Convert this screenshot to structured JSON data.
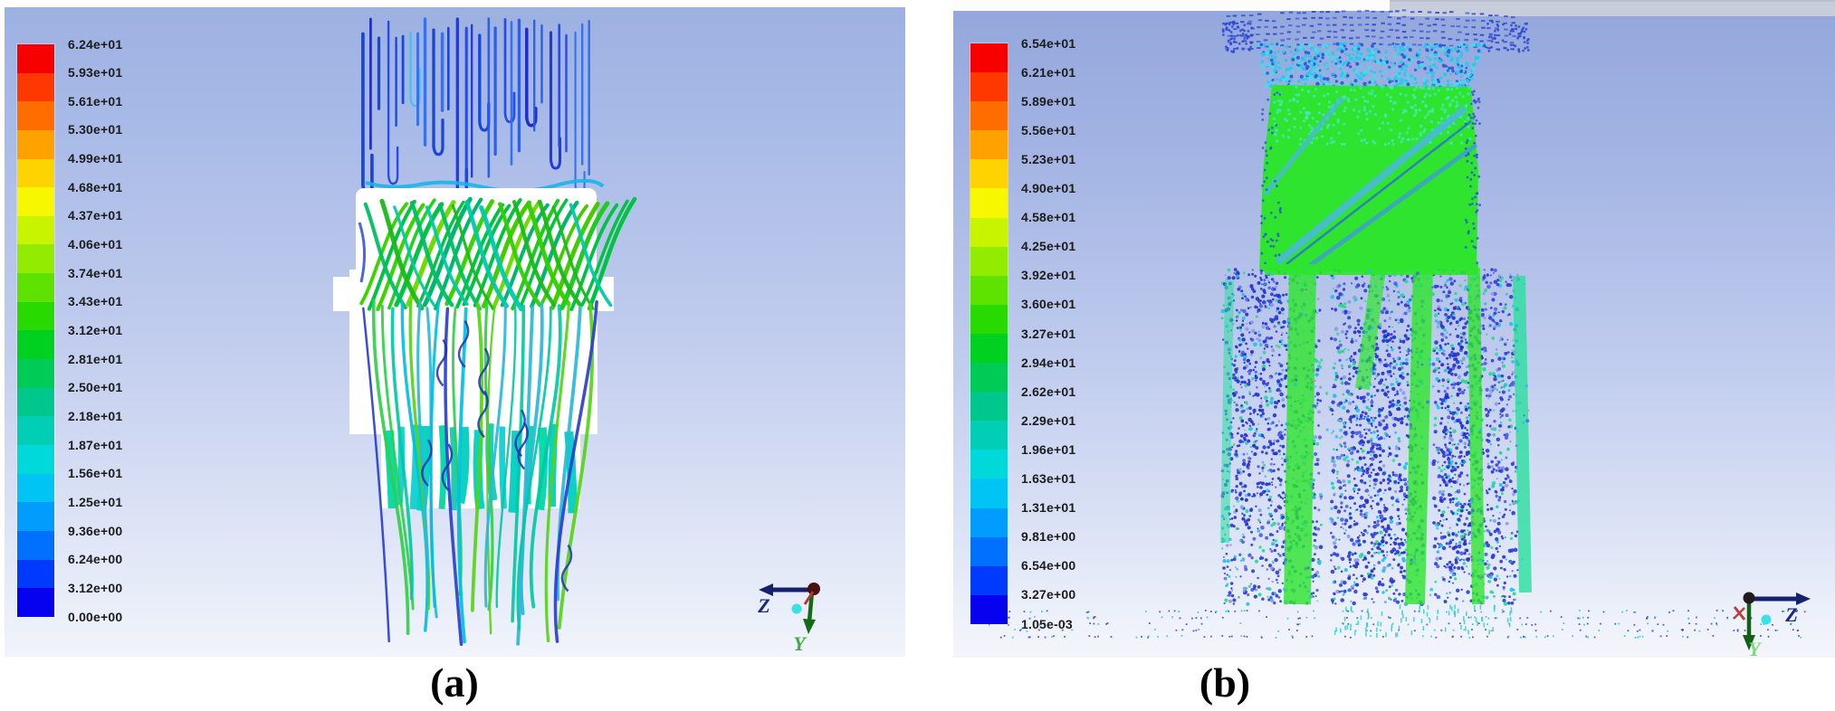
{
  "figure": {
    "caption_a": "(a)",
    "caption_b": "(b)"
  },
  "axes": {
    "z": "Z",
    "y": "Y"
  },
  "colorbar_colors": [
    "#f60000",
    "#ff3800",
    "#ff6d00",
    "#ffa200",
    "#ffd300",
    "#f7f700",
    "#c8f400",
    "#93ec00",
    "#5ee300",
    "#29da00",
    "#00d121",
    "#00cb56",
    "#00c78b",
    "#00cfb6",
    "#00d9d9",
    "#00c4f4",
    "#009dff",
    "#0071ff",
    "#003aff",
    "#0602ef"
  ],
  "panels": [
    {
      "name": "a",
      "legend_values": [
        "6.24e+01",
        "5.93e+01",
        "5.61e+01",
        "5.30e+01",
        "4.99e+01",
        "4.68e+01",
        "4.37e+01",
        "4.06e+01",
        "3.74e+01",
        "3.43e+01",
        "3.12e+01",
        "2.81e+01",
        "2.50e+01",
        "2.18e+01",
        "1.87e+01",
        "1.56e+01",
        "1.25e+01",
        "9.36e+00",
        "6.24e+00",
        "3.12e+00",
        "0.00e+00"
      ]
    },
    {
      "name": "b",
      "legend_values": [
        "6.54e+01",
        "6.21e+01",
        "5.89e+01",
        "5.56e+01",
        "5.23e+01",
        "4.90e+01",
        "4.58e+01",
        "4.25e+01",
        "3.92e+01",
        "3.60e+01",
        "3.27e+01",
        "2.94e+01",
        "2.62e+01",
        "2.29e+01",
        "1.96e+01",
        "1.63e+01",
        "1.31e+01",
        "9.81e+00",
        "6.54e+00",
        "3.27e+00",
        "1.05e-03"
      ]
    }
  ],
  "chart_data": [
    {
      "type": "heatmap",
      "panel": "a",
      "title": "",
      "legend_ticks": [
        "6.24e+01",
        "5.93e+01",
        "5.61e+01",
        "5.30e+01",
        "4.99e+01",
        "4.68e+01",
        "4.37e+01",
        "4.06e+01",
        "3.74e+01",
        "3.43e+01",
        "3.12e+01",
        "2.81e+01",
        "2.50e+01",
        "2.18e+01",
        "1.87e+01",
        "1.56e+01",
        "1.25e+01",
        "9.36e+00",
        "6.24e+00",
        "3.12e+00",
        "0.00e+00"
      ],
      "range": [
        0.0,
        62.4
      ],
      "colormap": "rainbow-red-to-blue-20-bands",
      "legend_position": "left"
    },
    {
      "type": "heatmap",
      "panel": "b",
      "title": "",
      "legend_ticks": [
        "6.54e+01",
        "6.21e+01",
        "5.89e+01",
        "5.56e+01",
        "5.23e+01",
        "4.90e+01",
        "4.58e+01",
        "4.25e+01",
        "3.92e+01",
        "3.60e+01",
        "3.27e+01",
        "2.94e+01",
        "2.62e+01",
        "2.29e+01",
        "1.96e+01",
        "1.63e+01",
        "1.31e+01",
        "9.81e+00",
        "6.54e+00",
        "3.27e+00",
        "1.05e-03"
      ],
      "range": [
        0.00105,
        65.4
      ],
      "colormap": "rainbow-red-to-blue-20-bands",
      "legend_position": "left"
    }
  ]
}
